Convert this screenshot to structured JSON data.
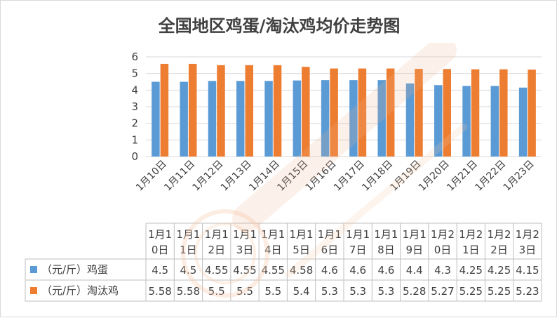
{
  "chart_data": {
    "type": "bar",
    "title": "全国地区鸡蛋/淘汰鸡均价走势图",
    "categories": [
      "1月10日",
      "1月11日",
      "1月12日",
      "1月13日",
      "1月14日",
      "1月15日",
      "1月16日",
      "1月17日",
      "1月18日",
      "1月19日",
      "1月20日",
      "1月21日",
      "1月22日",
      "1月23日"
    ],
    "table_headers": [
      [
        "1月1",
        "0日"
      ],
      [
        "1月1",
        "1日"
      ],
      [
        "1月1",
        "2日"
      ],
      [
        "1月1",
        "3日"
      ],
      [
        "1月1",
        "4日"
      ],
      [
        "1月1",
        "5日"
      ],
      [
        "1月1",
        "6日"
      ],
      [
        "1月1",
        "7日"
      ],
      [
        "1月1",
        "8日"
      ],
      [
        "1月1",
        "9日"
      ],
      [
        "1月2",
        "0日"
      ],
      [
        "1月2",
        "1日"
      ],
      [
        "1月2",
        "2日"
      ],
      [
        "1月2",
        "3日"
      ]
    ],
    "series": [
      {
        "name": "（元/斤）鸡蛋",
        "color": "#5b9bd5",
        "values": [
          4.5,
          4.5,
          4.55,
          4.55,
          4.55,
          4.58,
          4.6,
          4.6,
          4.6,
          4.4,
          4.3,
          4.25,
          4.25,
          4.15
        ]
      },
      {
        "name": "（元/斤）淘汰鸡",
        "color": "#ed7d31",
        "values": [
          5.58,
          5.58,
          5.5,
          5.5,
          5.5,
          5.4,
          5.3,
          5.3,
          5.3,
          5.28,
          5.27,
          5.25,
          5.25,
          5.23
        ]
      }
    ],
    "ylim": [
      0,
      6
    ],
    "yticks": [
      0,
      1,
      2,
      3,
      4,
      5,
      6
    ],
    "grid": true,
    "legend": "data-table"
  }
}
